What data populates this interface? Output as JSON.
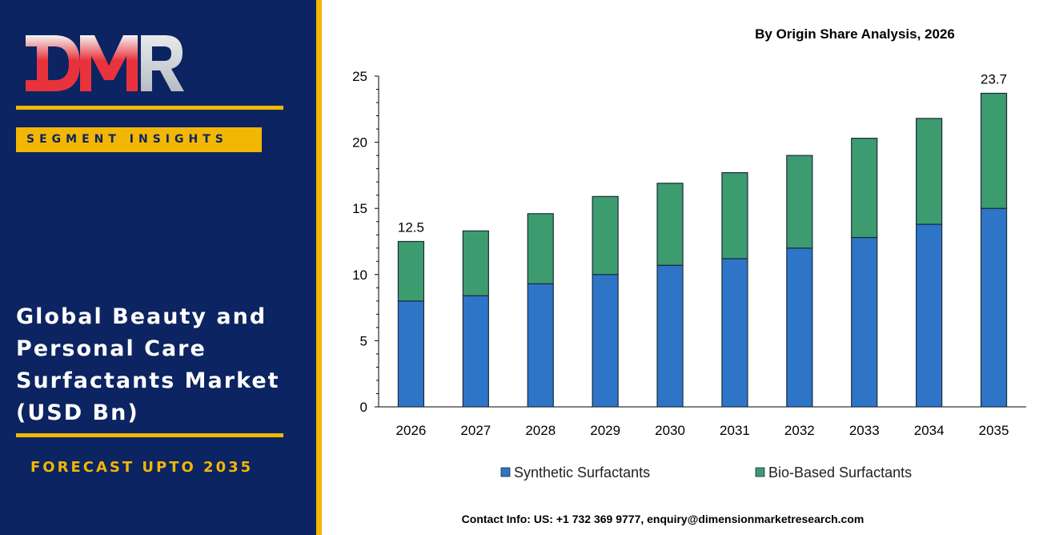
{
  "brand": {
    "logo_text": "DMR",
    "segment_label": "SEGMENT INSIGHTS",
    "market_title_lines": [
      "Global Beauty and",
      "Personal Care",
      "Surfactants Market",
      "(USD Bn)"
    ],
    "forecast_label": "FORECAST UPTO 2035",
    "colors": {
      "navy": "#0c2461",
      "gold": "#f2b705",
      "logo_red": "#e8323c",
      "logo_gray": "#c9cdd2"
    }
  },
  "contact": "Contact Info: US: +1 732 369 9777, enquiry@dimensionmarketresearch.com",
  "chart_data": {
    "type": "bar",
    "stacked": true,
    "title": "By Origin Share Analysis, 2026",
    "xlabel": "",
    "ylabel": "",
    "categories": [
      "2026",
      "2027",
      "2028",
      "2029",
      "2030",
      "2031",
      "2032",
      "2033",
      "2034",
      "2035"
    ],
    "series": [
      {
        "name": "Synthetic Surfactants",
        "color": "#2e75c8",
        "values": [
          8.0,
          8.4,
          9.3,
          10.0,
          10.7,
          11.2,
          12.0,
          12.8,
          13.8,
          15.0
        ]
      },
      {
        "name": "Bio-Based Surfactants",
        "color": "#3d9b70",
        "values": [
          4.5,
          4.9,
          5.3,
          5.9,
          6.2,
          6.5,
          7.0,
          7.5,
          8.0,
          8.7
        ]
      }
    ],
    "total_labels": [
      {
        "category": "2026",
        "label": "12.5"
      },
      {
        "category": "2035",
        "label": "23.7"
      }
    ],
    "ylim": [
      0,
      25
    ],
    "yticks": [
      0,
      5,
      10,
      15,
      20,
      25
    ],
    "grid": false,
    "legend_position": "bottom"
  }
}
